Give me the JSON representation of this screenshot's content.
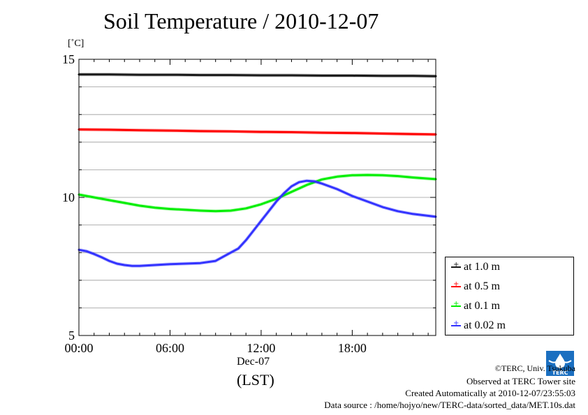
{
  "chart_data": {
    "type": "line",
    "title": "Soil Temperature / 2010-12-07",
    "ylabel": "[˚C]",
    "xlabel": "(LST)",
    "x_sub_label": "Dec-07",
    "xlim": [
      0,
      23.5
    ],
    "ylim": [
      5,
      15
    ],
    "x_ticks": [
      0,
      6,
      12,
      18
    ],
    "x_tick_labels": [
      "00:00",
      "06:00",
      "12:00",
      "18:00"
    ],
    "y_ticks": [
      5,
      10,
      15
    ],
    "y_tick_labels": [
      "5",
      "10",
      "15"
    ],
    "grid": true,
    "legend_position": "lower-right-outside",
    "series": [
      {
        "name": "at 1.0 m",
        "color": "#1a1a1a",
        "x": [
          0,
          2,
          4,
          6,
          8,
          10,
          12,
          14,
          16,
          18,
          20,
          22,
          23.5
        ],
        "values": [
          14.45,
          14.45,
          14.44,
          14.44,
          14.43,
          14.43,
          14.42,
          14.42,
          14.41,
          14.41,
          14.4,
          14.4,
          14.39
        ]
      },
      {
        "name": "at 0.5 m",
        "color": "#ff0000",
        "x": [
          0,
          2,
          4,
          6,
          8,
          10,
          12,
          14,
          16,
          18,
          20,
          22,
          23.5
        ],
        "values": [
          12.46,
          12.45,
          12.43,
          12.42,
          12.4,
          12.39,
          12.37,
          12.36,
          12.34,
          12.33,
          12.31,
          12.29,
          12.28
        ]
      },
      {
        "name": "at 0.1 m",
        "color": "#00ee00",
        "x": [
          0,
          1,
          2,
          3,
          4,
          5,
          6,
          7,
          8,
          9,
          10,
          11,
          12,
          13,
          14,
          15,
          16,
          17,
          18,
          19,
          20,
          21,
          22,
          23.5
        ],
        "values": [
          10.1,
          10.0,
          9.9,
          9.8,
          9.7,
          9.63,
          9.58,
          9.55,
          9.52,
          9.5,
          9.52,
          9.6,
          9.75,
          9.95,
          10.2,
          10.45,
          10.65,
          10.75,
          10.8,
          10.81,
          10.8,
          10.77,
          10.72,
          10.66
        ]
      },
      {
        "name": "at 0.02 m",
        "color": "#3333ff",
        "x": [
          0,
          0.5,
          1,
          1.5,
          2,
          2.5,
          3,
          3.5,
          4,
          5,
          6,
          7,
          8,
          9,
          9.5,
          10,
          10.5,
          11,
          11.5,
          12,
          12.5,
          13,
          13.5,
          14,
          14.5,
          15,
          15.5,
          16,
          17,
          18,
          19,
          20,
          21,
          22,
          23.5
        ],
        "values": [
          8.1,
          8.05,
          7.95,
          7.83,
          7.7,
          7.6,
          7.55,
          7.52,
          7.52,
          7.55,
          7.58,
          7.6,
          7.62,
          7.7,
          7.85,
          8.0,
          8.15,
          8.45,
          8.8,
          9.15,
          9.5,
          9.85,
          10.15,
          10.4,
          10.55,
          10.6,
          10.58,
          10.5,
          10.3,
          10.05,
          9.85,
          9.65,
          9.5,
          9.4,
          9.3
        ]
      }
    ]
  },
  "footer": {
    "copyright": "©TERC, Univ. Tsukuba",
    "site": "Observed at TERC Tower site",
    "created": "Created Automatically at 2010-12-07/23:55:03",
    "source": "Data source : /home/hojyo/new/TERC-data/sorted_data/MET.10s.dat"
  },
  "logo": {
    "text": "TERC",
    "color": "#1b6fc0"
  }
}
